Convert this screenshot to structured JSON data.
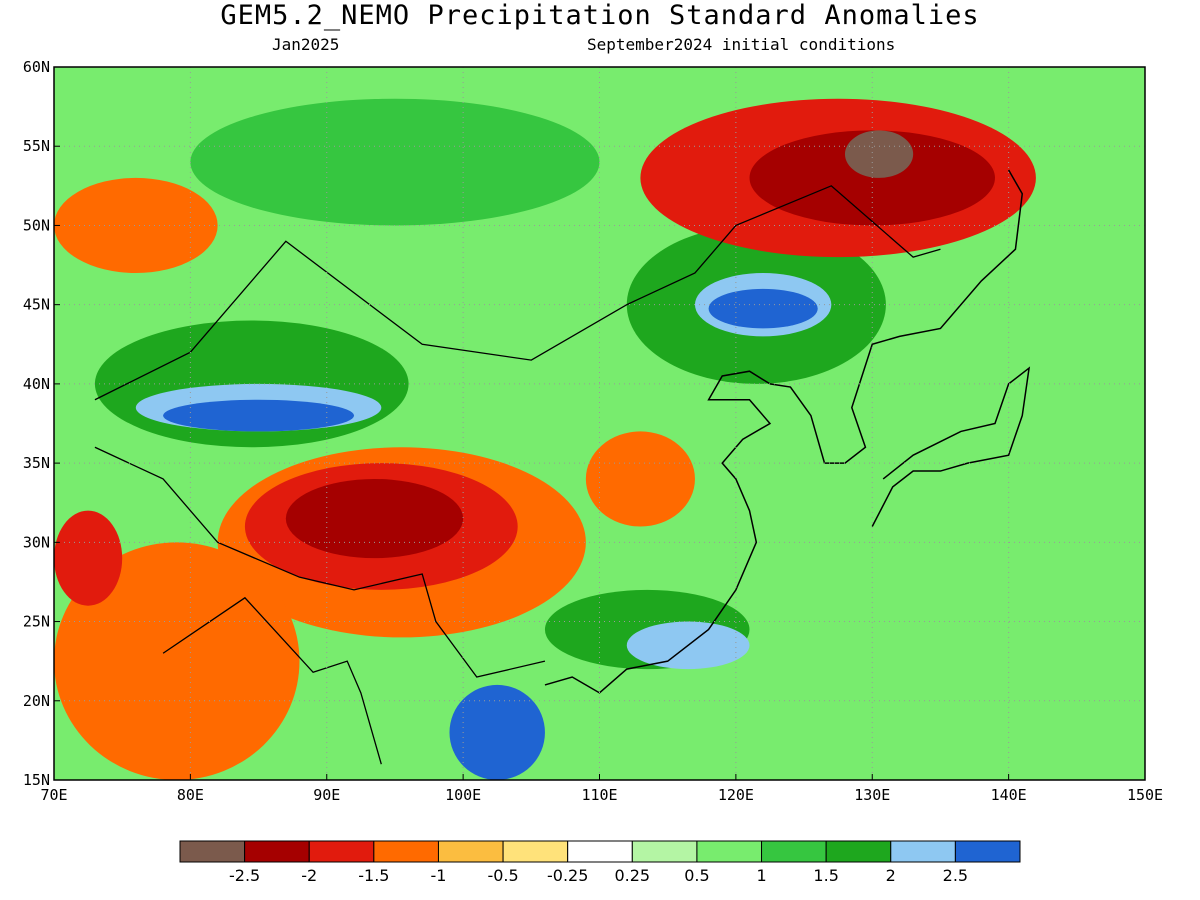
{
  "header": {
    "title": "GEM5.2_NEMO Precipitation Standard Anomalies",
    "valid_month": "Jan2025",
    "init_label": "September2024 initial conditions"
  },
  "map": {
    "lon_range": [
      70,
      150
    ],
    "lat_range": [
      15,
      60
    ],
    "lon_ticks": [
      {
        "v": 70,
        "label": "70E"
      },
      {
        "v": 80,
        "label": "80E"
      },
      {
        "v": 90,
        "label": "90E"
      },
      {
        "v": 100,
        "label": "100E"
      },
      {
        "v": 110,
        "label": "110E"
      },
      {
        "v": 120,
        "label": "120E"
      },
      {
        "v": 130,
        "label": "130E"
      },
      {
        "v": 140,
        "label": "140E"
      },
      {
        "v": 150,
        "label": "150E"
      }
    ],
    "lat_ticks": [
      {
        "v": 15,
        "label": "15N"
      },
      {
        "v": 20,
        "label": "20N"
      },
      {
        "v": 25,
        "label": "25N"
      },
      {
        "v": 30,
        "label": "30N"
      },
      {
        "v": 35,
        "label": "35N"
      },
      {
        "v": 40,
        "label": "40N"
      },
      {
        "v": 45,
        "label": "45N"
      },
      {
        "v": 50,
        "label": "50N"
      },
      {
        "v": 55,
        "label": "55N"
      },
      {
        "v": 60,
        "label": "60N"
      }
    ],
    "anomaly_regions": [
      {
        "level": "1.5",
        "lon": [
          73,
          96
        ],
        "lat": [
          36,
          44
        ]
      },
      {
        "level": "2",
        "lon": [
          76,
          94
        ],
        "lat": [
          37,
          40
        ]
      },
      {
        "level": "2.5",
        "lon": [
          78,
          92
        ],
        "lat": [
          37,
          39
        ]
      },
      {
        "level": "1",
        "lon": [
          80,
          110
        ],
        "lat": [
          50,
          58
        ]
      },
      {
        "level": "1.5",
        "lon": [
          112,
          131
        ],
        "lat": [
          40,
          50
        ]
      },
      {
        "level": "2",
        "lon": [
          117,
          127
        ],
        "lat": [
          43,
          47
        ]
      },
      {
        "level": "2.5",
        "lon": [
          118,
          126
        ],
        "lat": [
          43.5,
          46
        ]
      },
      {
        "level": "-1",
        "lon": [
          70,
          82
        ],
        "lat": [
          47,
          53
        ]
      },
      {
        "level": "-1.5",
        "lon": [
          113,
          142
        ],
        "lat": [
          48,
          58
        ]
      },
      {
        "level": "-2",
        "lon": [
          121,
          139
        ],
        "lat": [
          50,
          56
        ]
      },
      {
        "level": "-2.5",
        "lon": [
          128,
          133
        ],
        "lat": [
          53,
          56
        ]
      },
      {
        "level": "-1",
        "lon": [
          82,
          109
        ],
        "lat": [
          24,
          36
        ]
      },
      {
        "level": "-1.5",
        "lon": [
          84,
          104
        ],
        "lat": [
          27,
          35
        ]
      },
      {
        "level": "-2",
        "lon": [
          87,
          100
        ],
        "lat": [
          29,
          34
        ]
      },
      {
        "level": "-1",
        "lon": [
          70,
          88
        ],
        "lat": [
          15,
          30
        ]
      },
      {
        "level": "-1.5",
        "lon": [
          70,
          75
        ],
        "lat": [
          26,
          32
        ]
      },
      {
        "level": "-1",
        "lon": [
          109,
          117
        ],
        "lat": [
          31,
          37
        ]
      },
      {
        "level": "1.5",
        "lon": [
          106,
          121
        ],
        "lat": [
          22,
          27
        ]
      },
      {
        "level": "2",
        "lon": [
          112,
          121
        ],
        "lat": [
          22,
          25
        ]
      },
      {
        "level": "2.5",
        "lon": [
          99,
          106
        ],
        "lat": [
          15,
          21
        ]
      }
    ]
  },
  "colorbar": {
    "bins": [
      {
        "color": "#7b5a4c"
      },
      {
        "color": "#a50000"
      },
      {
        "color": "#e11b0d"
      },
      {
        "color": "#ff6a00"
      },
      {
        "color": "#fbbd40"
      },
      {
        "color": "#ffe27a"
      },
      {
        "color": "#ffffff"
      },
      {
        "color": "#b4f5a4"
      },
      {
        "color": "#78ec6e"
      },
      {
        "color": "#36c640"
      },
      {
        "color": "#1ea71e"
      },
      {
        "color": "#8ec8f2"
      },
      {
        "color": "#1f64d2"
      }
    ],
    "labels": [
      "-2.5",
      "-2",
      "-1.5",
      "-1",
      "-0.5",
      "-0.25",
      "0.25",
      "0.5",
      "1",
      "1.5",
      "2",
      "2.5"
    ]
  },
  "level_colors": {
    "-2.5": "#7b5a4c",
    "-2": "#a50000",
    "-1.5": "#e11b0d",
    "-1": "#ff6a00",
    "-0.5": "#fbbd40",
    "-0.25": "#ffe27a",
    "0.25": "#b4f5a4",
    "0.5": "#78ec6e",
    "1": "#36c640",
    "1.5": "#1ea71e",
    "2": "#8ec8f2",
    "2.5": "#1f64d2"
  }
}
